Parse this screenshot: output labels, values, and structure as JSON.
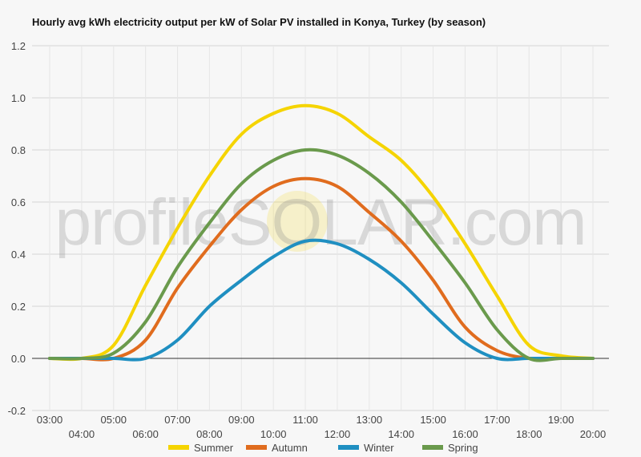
{
  "chart_data": {
    "type": "line",
    "title": "Hourly avg kWh electricity output per kW of Solar PV installed in Konya, Turkey (by season)",
    "watermark": "profileSOLAR.com",
    "xlabel": "",
    "ylabel": "",
    "ylim": [
      -0.2,
      1.2
    ],
    "yticks": [
      "-0.2",
      "0.0",
      "0.2",
      "0.4",
      "0.6",
      "0.8",
      "1.0",
      "1.2"
    ],
    "x": [
      "03:00",
      "04:00",
      "05:00",
      "06:00",
      "07:00",
      "08:00",
      "09:00",
      "10:00",
      "11:00",
      "12:00",
      "13:00",
      "14:00",
      "15:00",
      "16:00",
      "17:00",
      "18:00",
      "19:00",
      "20:00"
    ],
    "grid": true,
    "legend": "bottom",
    "series": [
      {
        "name": "Summer",
        "color": "#f5d400",
        "values": [
          0,
          0,
          0.05,
          0.28,
          0.5,
          0.7,
          0.86,
          0.94,
          0.97,
          0.94,
          0.85,
          0.76,
          0.62,
          0.44,
          0.24,
          0.05,
          0.01,
          0
        ]
      },
      {
        "name": "Autumn",
        "color": "#e06c1e",
        "values": [
          0,
          0,
          0,
          0.07,
          0.27,
          0.43,
          0.57,
          0.66,
          0.69,
          0.66,
          0.56,
          0.45,
          0.3,
          0.12,
          0.03,
          0,
          0,
          0
        ]
      },
      {
        "name": "Winter",
        "color": "#1f8fc1",
        "values": [
          0,
          0,
          0,
          0,
          0.07,
          0.2,
          0.3,
          0.39,
          0.45,
          0.44,
          0.38,
          0.29,
          0.17,
          0.06,
          0,
          0,
          0,
          0
        ]
      },
      {
        "name": "Spring",
        "color": "#6a9a4c",
        "values": [
          0,
          0,
          0.02,
          0.14,
          0.35,
          0.52,
          0.67,
          0.76,
          0.8,
          0.78,
          0.71,
          0.6,
          0.45,
          0.29,
          0.11,
          0,
          0,
          0
        ]
      }
    ]
  }
}
